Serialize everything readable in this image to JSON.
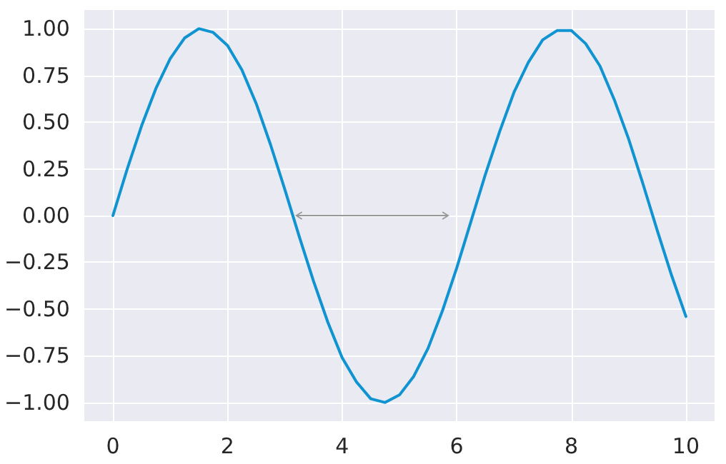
{
  "chart_data": {
    "type": "line",
    "x": [
      0,
      0.25,
      0.5,
      0.75,
      1,
      1.25,
      1.5,
      1.75,
      2,
      2.25,
      2.5,
      2.75,
      3,
      3.25,
      3.5,
      3.75,
      4,
      4.25,
      4.5,
      4.75,
      5,
      5.25,
      5.5,
      5.75,
      6,
      6.25,
      6.5,
      6.75,
      7,
      7.25,
      7.5,
      7.75,
      8,
      8.25,
      8.5,
      8.75,
      9,
      9.25,
      9.5,
      9.75,
      10
    ],
    "series": [
      {
        "color": "#0f93d1",
        "values": [
          0,
          0.25,
          0.48,
          0.68,
          0.84,
          0.95,
          1.0,
          0.98,
          0.91,
          0.78,
          0.6,
          0.38,
          0.14,
          -0.11,
          -0.35,
          -0.57,
          -0.76,
          -0.89,
          -0.98,
          -1.0,
          -0.96,
          -0.86,
          -0.71,
          -0.51,
          -0.28,
          -0.03,
          0.22,
          0.45,
          0.66,
          0.82,
          0.94,
          0.99,
          0.99,
          0.92,
          0.8,
          0.62,
          0.41,
          0.17,
          -0.08,
          -0.32,
          -0.54
        ]
      }
    ],
    "xlim": [
      -0.5,
      10.5
    ],
    "xticks": [
      0,
      2,
      4,
      6,
      8,
      10
    ],
    "ylim": [
      -1.1,
      1.1
    ],
    "yticks": [
      {
        "value": -1,
        "label": "−1.00"
      },
      {
        "value": -0.75,
        "label": "−0.75"
      },
      {
        "value": -0.5,
        "label": "−0.50"
      },
      {
        "value": -0.25,
        "label": "−0.25"
      },
      {
        "value": 0,
        "label": "0.00"
      },
      {
        "value": 0.25,
        "label": "0.25"
      },
      {
        "value": 0.5,
        "label": "0.50"
      },
      {
        "value": 0.75,
        "label": "0.75"
      },
      {
        "value": 1,
        "label": "1.00"
      }
    ],
    "grid": true,
    "line_style": "solid"
  }
}
